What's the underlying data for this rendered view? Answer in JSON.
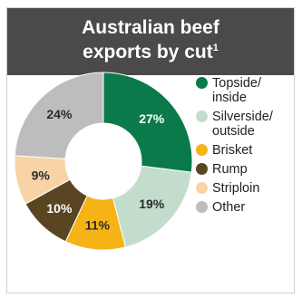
{
  "header": {
    "title_line1": "Australian beef",
    "title_line2": "exports by cut",
    "title_footnote": "1"
  },
  "chart_data": {
    "type": "pie",
    "donut": true,
    "categories": [
      "Topside/ inside",
      "Silverside/ outside",
      "Brisket",
      "Rump",
      "Striploin",
      "Other"
    ],
    "values": [
      27,
      19,
      11,
      10,
      9,
      24
    ],
    "labels": [
      "27%",
      "19%",
      "11%",
      "10%",
      "9%",
      "24%"
    ],
    "colors": [
      "#0a7a4a",
      "#c3ddcc",
      "#f5b316",
      "#5a4522",
      "#f7d3a6",
      "#bdbdbd"
    ],
    "legend_placement": "right"
  },
  "legend": [
    {
      "line1": "Topside/",
      "line2": "inside"
    },
    {
      "line1": "Silverside/",
      "line2": "outside"
    },
    {
      "line1": "Brisket",
      "line2": ""
    },
    {
      "line1": "Rump",
      "line2": ""
    },
    {
      "line1": "Striploin",
      "line2": ""
    },
    {
      "line1": "Other",
      "line2": ""
    }
  ]
}
